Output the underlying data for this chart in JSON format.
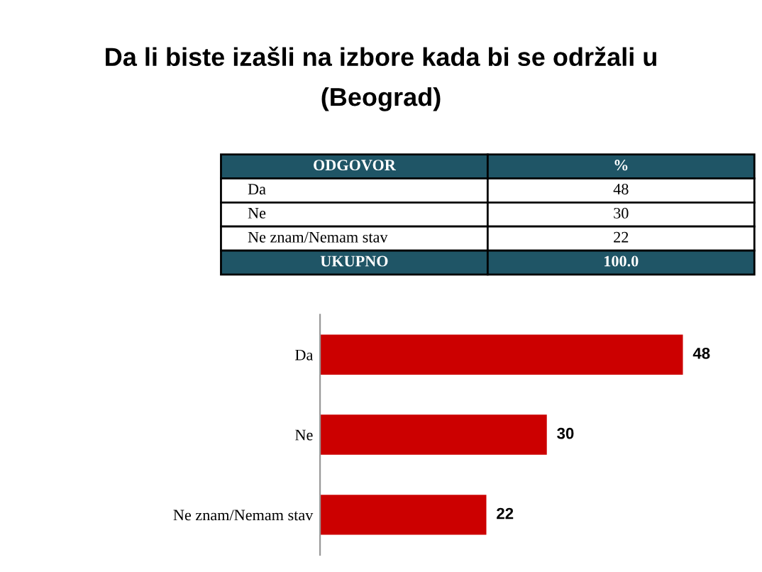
{
  "chart_data": {
    "type": "bar",
    "orientation": "horizontal",
    "title": "Da li biste izašli na izbore kada bi se održali u",
    "subtitle": "(Beograd)",
    "categories": [
      "Da",
      "Ne",
      "Ne znam/Nemam stav"
    ],
    "values": [
      48,
      30,
      22
    ],
    "color": "#cc0000",
    "data_labels": true,
    "grid": false,
    "legend": false,
    "annotations": [
      "ODGOVOR",
      "%",
      "Da",
      "48",
      "Ne",
      "30",
      "Ne znam/Nemam stav",
      "22",
      "UKUPNO",
      "100.0"
    ]
  }
}
